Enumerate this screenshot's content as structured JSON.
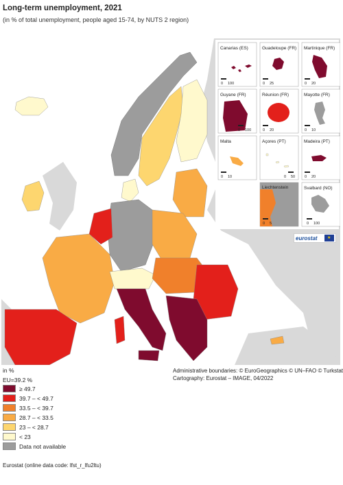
{
  "title": "Long-term unemployment, 2021",
  "subtitle": "(in % of total unemployment, people aged 15-74, by NUTS 2 region)",
  "colors": {
    "c1": "#7f0b2e",
    "c2": "#e3201b",
    "c3": "#f0802b",
    "c4": "#f9ab45",
    "c5": "#fdd66f",
    "c6": "#fff9cd",
    "na": "#9c9c9c",
    "sea": "#ffffff",
    "nonEU": "#d9d9d9"
  },
  "insets": [
    {
      "name": "Canarias (ES)",
      "scale": [
        "0",
        "100"
      ]
    },
    {
      "name": "Guadeloupe (FR)",
      "scale": [
        "0",
        "25"
      ]
    },
    {
      "name": "Martinique (FR)",
      "scale": [
        "0",
        "20"
      ]
    },
    {
      "name": "Guyane (FR)",
      "scale": [
        "0",
        "100"
      ]
    },
    {
      "name": "Réunion (FR)",
      "scale": [
        "0",
        "20"
      ]
    },
    {
      "name": "Mayotte (FR)",
      "scale": [
        "0",
        "10"
      ]
    },
    {
      "name": "Malta",
      "scale": [
        "0",
        "10"
      ]
    },
    {
      "name": "Açores (PT)",
      "scale": [
        "0",
        "50"
      ]
    },
    {
      "name": "Madeira (PT)",
      "scale": [
        "0",
        "20"
      ]
    },
    {
      "name": "Liechtenstein",
      "scale": [
        "0",
        "5"
      ]
    },
    {
      "name": "Svalbard (NO)",
      "scale": [
        "0",
        "100"
      ]
    }
  ],
  "legend": {
    "unit": "in %",
    "eu_average": "EU=39.2 %",
    "items": [
      {
        "label": "≥ 49.7",
        "color": "#7f0b2e"
      },
      {
        "label": "39.7 – < 49.7",
        "color": "#e3201b"
      },
      {
        "label": "33.5 – < 39.7",
        "color": "#f0802b"
      },
      {
        "label": "28.7 – < 33.5",
        "color": "#f9ab45"
      },
      {
        "label": "23 – < 28.7",
        "color": "#fdd66f"
      },
      {
        "label": "< 23",
        "color": "#fff9cd"
      },
      {
        "label": "Data not available",
        "color": "#9c9c9c"
      }
    ]
  },
  "credits": {
    "line1": "Administrative boundaries: © EuroGeographics © UN–FAO © Turkstat",
    "line2": "Cartography: Eurostat – IMAGE, 04/2022"
  },
  "logo_text": "eurostat",
  "source": "Eurostat (online data code: lfst_r_lfu2ltu)"
}
